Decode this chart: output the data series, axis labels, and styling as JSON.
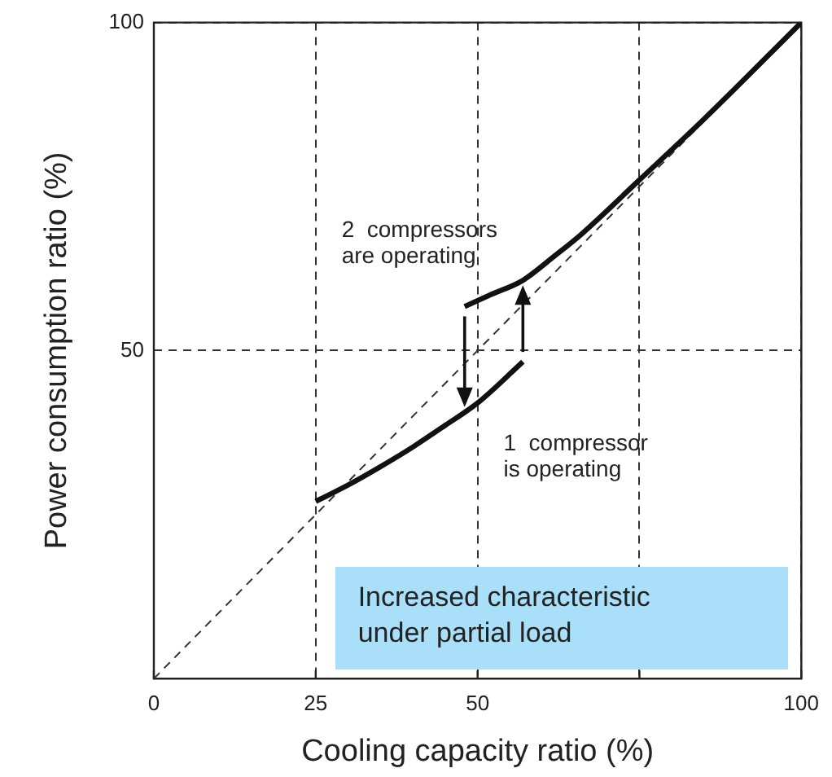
{
  "chart_data": {
    "type": "line",
    "xlabel": "Cooling capacity ratio (%)",
    "ylabel": "Power consumption ratio (%)",
    "xlim": [
      0,
      100
    ],
    "ylim": [
      0,
      100
    ],
    "xticks": [
      0,
      25,
      50,
      {
        "value": 75,
        "label": null
      },
      100
    ],
    "yticks": [
      50,
      100
    ],
    "grid": true,
    "legend": false,
    "marker": "none",
    "series": [
      {
        "color": "#111111",
        "x": [
          25,
          30,
          35,
          40,
          45,
          50,
          57
        ],
        "values": [
          27,
          29.5,
          32.3,
          35.3,
          38.6,
          42,
          48.3
        ]
      },
      {
        "color": "#111111",
        "x": [
          48,
          52,
          57,
          62,
          66,
          75,
          85,
          100
        ],
        "values": [
          56.7,
          58.5,
          60.7,
          64.5,
          67.7,
          76,
          85.3,
          100
        ]
      },
      {
        "color": "#333333",
        "line_style": "dashed",
        "x": [
          0,
          100
        ],
        "values": [
          0,
          100
        ]
      }
    ],
    "annotations": [
      "2  compressors\nare operating",
      "1  compressor\nis operating",
      "Increased characteristic\nunder partial load"
    ]
  }
}
